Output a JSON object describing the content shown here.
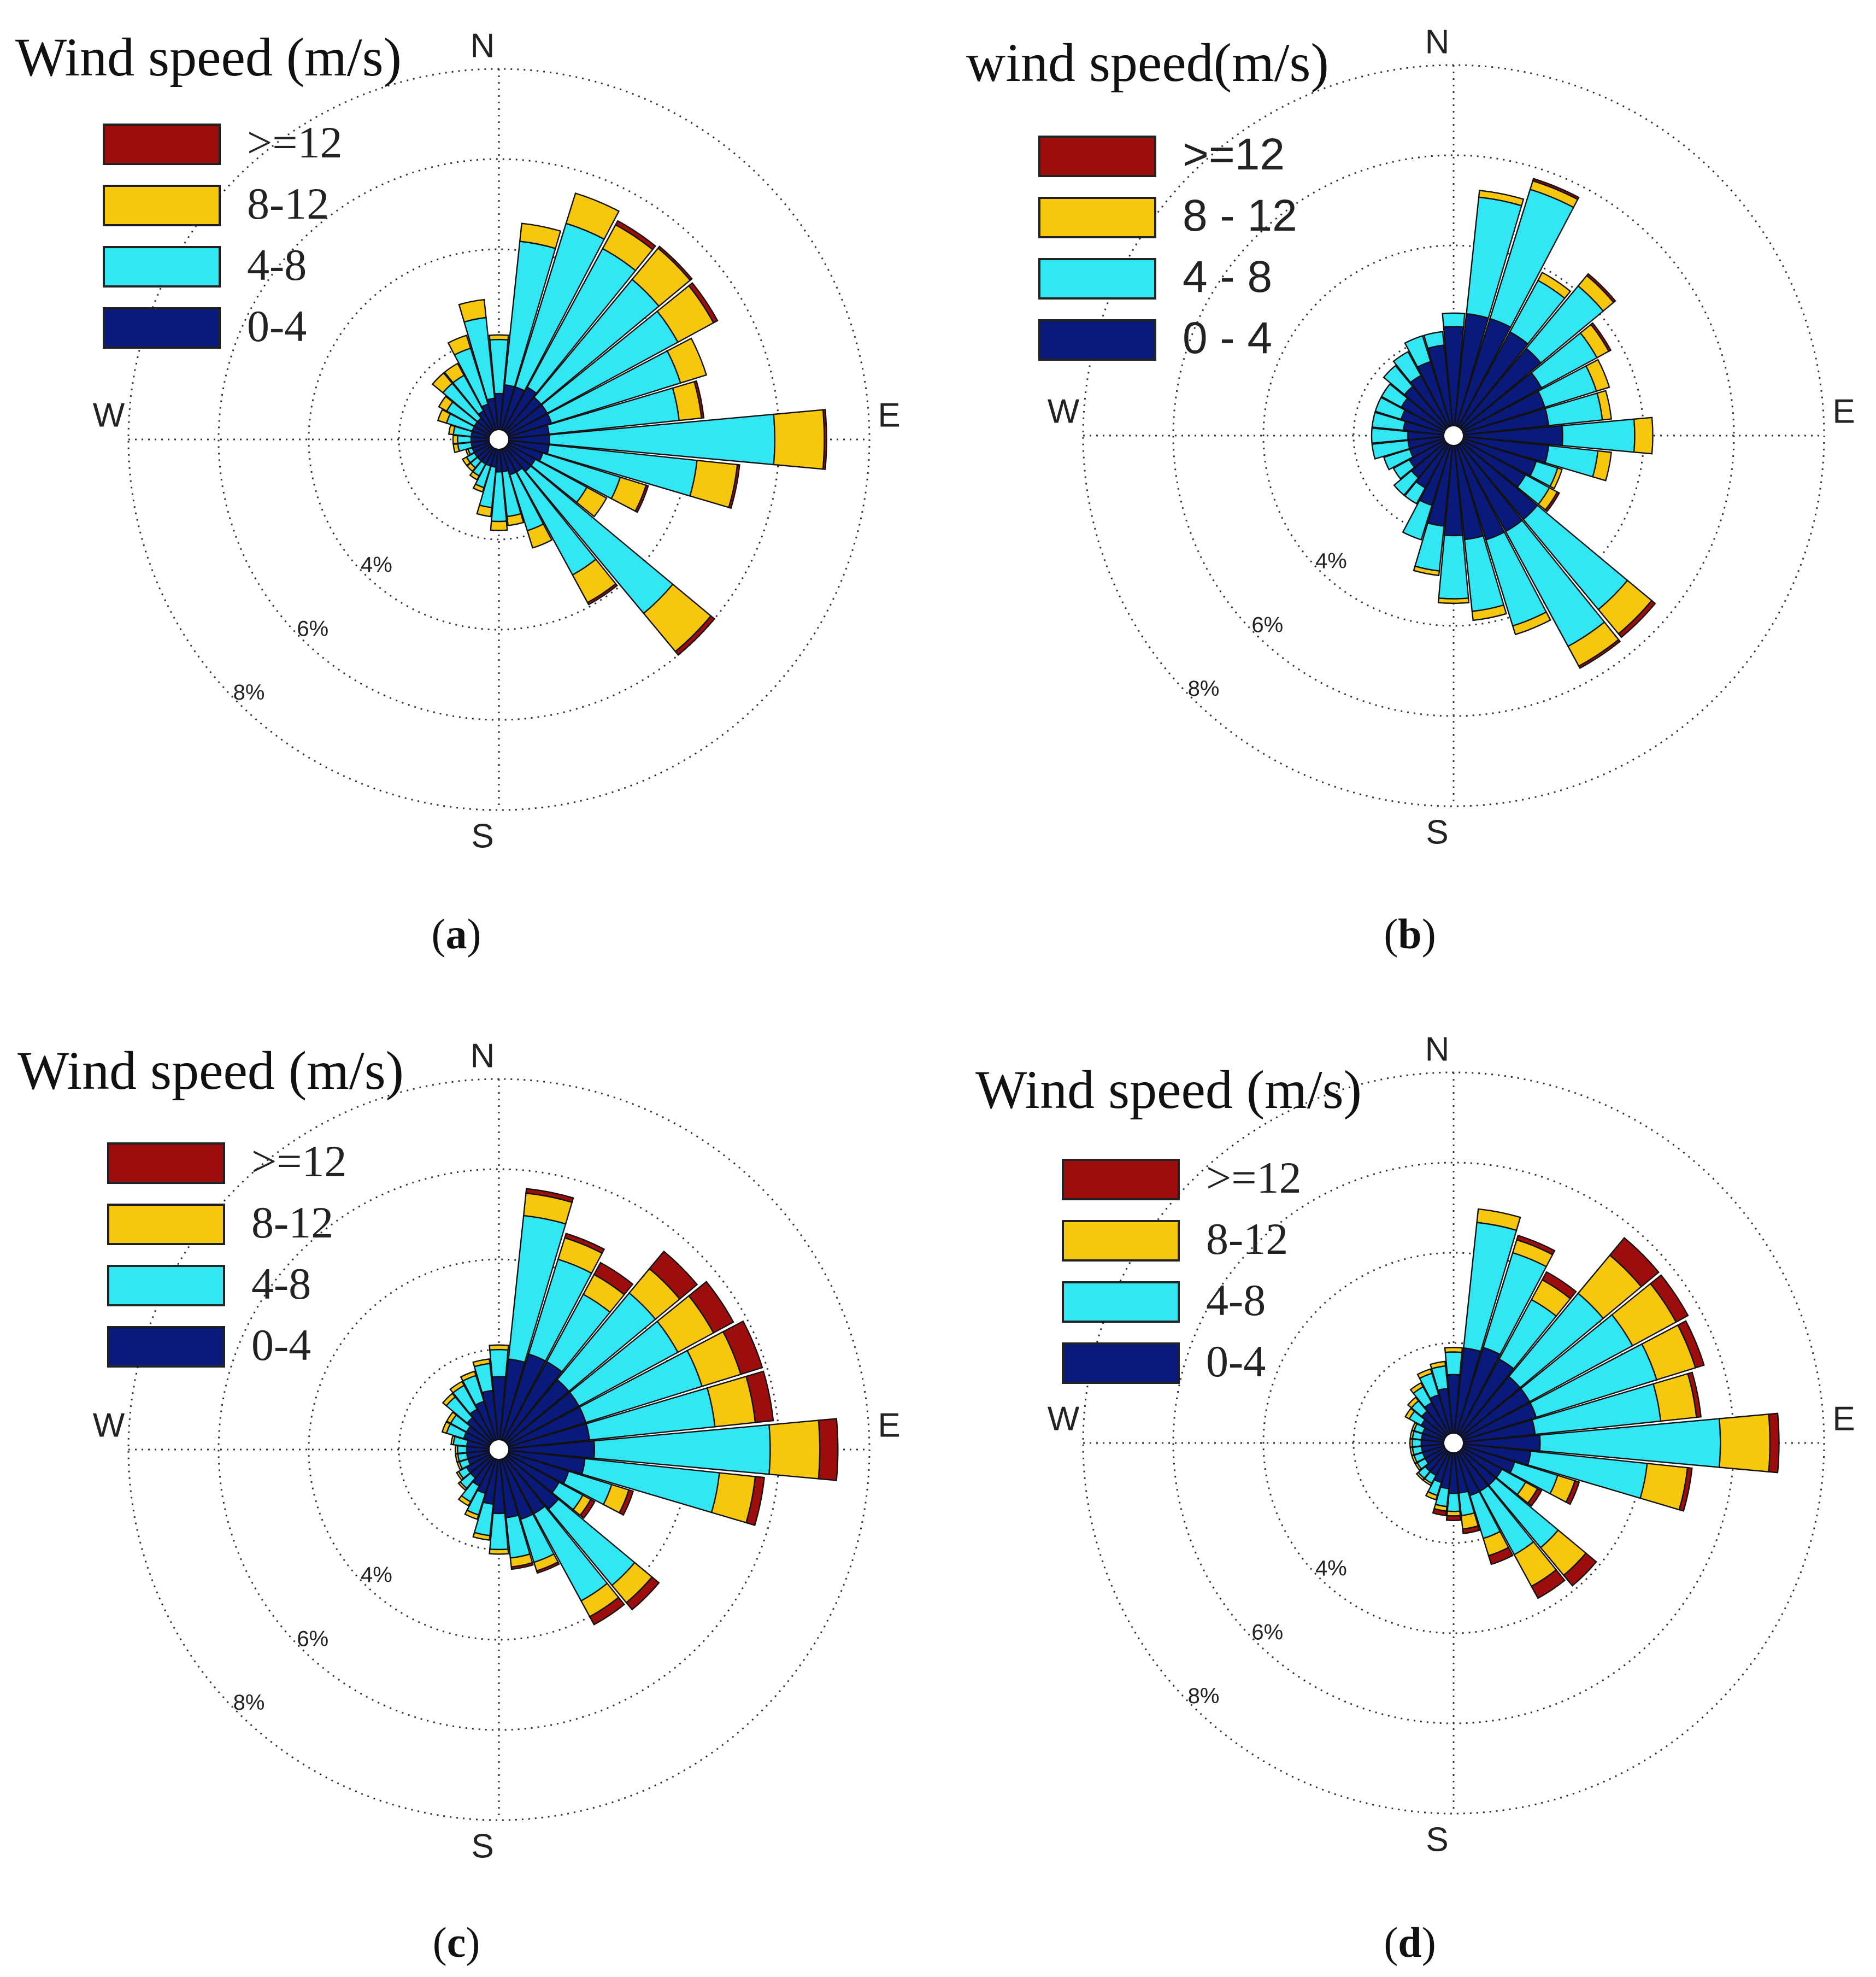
{
  "colors": {
    "bin_0_4": "#0a1a7a",
    "bin_4_8": "#33e6f4",
    "bin_8_12": "#f7c60f",
    "bin_ge_12": "#9c0d0d",
    "grid": "#333333"
  },
  "compass_labels": {
    "n": "N",
    "e": "E",
    "s": "S",
    "w": "W"
  },
  "ring_labels": [
    "4%",
    "6%",
    "8%"
  ],
  "chart_data": [
    {
      "type": "wind-rose",
      "panel": "a",
      "legend_title": "Wind speed (m/s)",
      "legend": [
        ">=12",
        "8-12",
        "4-8",
        "0-4"
      ],
      "radial_max_percent": 8,
      "caption": "(a)",
      "caption_letter": "a",
      "directions_deg": [
        0,
        11.25,
        22.5,
        33.75,
        45,
        56.25,
        67.5,
        78.75,
        90,
        101.25,
        112.5,
        123.75,
        135,
        146.25,
        157.5,
        168.75,
        180,
        191.25,
        202.5,
        213.75,
        225,
        236.25,
        247.5,
        258.75,
        270,
        281.25,
        292.5,
        303.75,
        315,
        326.25,
        337.5,
        348.75
      ],
      "series": [
        {
          "name": "0-4",
          "values": [
            0.8,
            1.0,
            1.0,
            1.1,
            1.0,
            1.0,
            1.0,
            0.9,
            0.9,
            0.9,
            0.8,
            0.7,
            0.7,
            0.6,
            0.6,
            0.5,
            0.5,
            0.4,
            0.4,
            0.4,
            0.4,
            0.4,
            0.4,
            0.4,
            0.4,
            0.4,
            0.4,
            0.4,
            0.4,
            0.5,
            0.6,
            0.7
          ]
        },
        {
          "name": "4-8",
          "values": [
            1.2,
            3.2,
            3.8,
            3.5,
            3.4,
            3.3,
            3.0,
            2.9,
            5.0,
            3.3,
            1.8,
            1.3,
            4.1,
            2.6,
            1.3,
            1.0,
            1.1,
            0.9,
            0.5,
            0.3,
            0.2,
            0.2,
            0.1,
            0.3,
            0.3,
            0.4,
            0.6,
            0.7,
            1.0,
            0.9,
            1.3,
            1.8
          ]
        },
        {
          "name": "8-12",
          "values": [
            0.1,
            0.4,
            0.7,
            0.6,
            0.9,
            0.9,
            0.6,
            0.5,
            1.1,
            0.9,
            0.6,
            0.5,
            1.1,
            0.7,
            0.4,
            0.2,
            0.2,
            0.2,
            0.1,
            0.1,
            0.1,
            0.1,
            0.05,
            0.1,
            0.1,
            0.1,
            0.2,
            0.2,
            0.3,
            0.3,
            0.3,
            0.4
          ]
        },
        {
          "name": ">=12",
          "values": [
            0.0,
            0.0,
            0.0,
            0.1,
            0.05,
            0.1,
            0.0,
            0.05,
            0.05,
            0.05,
            0.05,
            0.0,
            0.1,
            0.05,
            0.0,
            0.0,
            0.0,
            0.0,
            0.0,
            0.0,
            0.0,
            0.0,
            0.0,
            0.0,
            0.0,
            0.0,
            0.0,
            0.0,
            0.0,
            0.0,
            0.0,
            0.0
          ]
        }
      ]
    },
    {
      "type": "wind-rose",
      "panel": "b",
      "legend_title": "wind speed(m/s)",
      "legend": [
        ">=12",
        "8 - 12",
        "4 - 8",
        "0 - 4"
      ],
      "radial_max_percent": 8,
      "caption": "(b)",
      "caption_letter": "b",
      "directions_deg": [
        0,
        11.25,
        22.5,
        33.75,
        45,
        56.25,
        67.5,
        78.75,
        90,
        101.25,
        112.5,
        123.75,
        135,
        146.25,
        157.5,
        168.75,
        180,
        191.25,
        202.5,
        213.75,
        225,
        236.25,
        247.5,
        258.75,
        270,
        281.25,
        292.5,
        303.75,
        315,
        326.25,
        337.5,
        348.75
      ],
      "series": [
        {
          "name": "0 - 4",
          "values": [
            2.2,
            2.5,
            2.5,
            2.4,
            2.3,
            2.0,
            1.9,
            1.9,
            2.2,
            1.9,
            1.7,
            1.6,
            2.2,
            2.2,
            2.2,
            2.1,
            2.0,
            1.8,
            1.4,
            1.1,
            1.0,
            0.9,
            0.8,
            0.8,
            0.8,
            0.9,
            1.0,
            1.1,
            1.2,
            1.3,
            1.5,
            1.8
          ]
        },
        {
          "name": "4 - 8",
          "values": [
            0.3,
            2.6,
            3.0,
            1.3,
            1.8,
            1.4,
            1.2,
            1.2,
            1.6,
            1.1,
            0.5,
            0.6,
            2.6,
            2.9,
            2.0,
            1.6,
            1.4,
            1.0,
            0.8,
            0.4,
            0.5,
            0.4,
            0.6,
            0.8,
            0.8,
            0.7,
            0.6,
            0.5,
            0.6,
            0.6,
            0.6,
            0.3
          ]
        },
        {
          "name": "8 - 12",
          "values": [
            0.0,
            0.15,
            0.2,
            0.2,
            0.3,
            0.3,
            0.3,
            0.2,
            0.4,
            0.3,
            0.1,
            0.2,
            0.7,
            0.5,
            0.2,
            0.2,
            0.1,
            0.1,
            0.0,
            0.0,
            0.0,
            0.0,
            0.0,
            0.0,
            0.0,
            0.0,
            0.0,
            0.0,
            0.0,
            0.0,
            0.0,
            0.0
          ]
        },
        {
          "name": ">=12",
          "values": [
            0.0,
            0.0,
            0.05,
            0.0,
            0.05,
            0.05,
            0.0,
            0.0,
            0.0,
            0.0,
            0.0,
            0.05,
            0.1,
            0.05,
            0.0,
            0.0,
            0.0,
            0.0,
            0.0,
            0.0,
            0.0,
            0.0,
            0.0,
            0.0,
            0.0,
            0.0,
            0.0,
            0.0,
            0.0,
            0.0,
            0.0,
            0.0
          ]
        }
      ]
    },
    {
      "type": "wind-rose",
      "panel": "c",
      "legend_title": "Wind speed (m/s)",
      "legend": [
        ">=12",
        "8-12",
        "4-8",
        "0-4"
      ],
      "radial_max_percent": 8,
      "caption": "(c)",
      "caption_letter": "c",
      "directions_deg": [
        0,
        11.25,
        22.5,
        33.75,
        45,
        56.25,
        67.5,
        78.75,
        90,
        101.25,
        112.5,
        123.75,
        135,
        146.25,
        157.5,
        168.75,
        180,
        191.25,
        202.5,
        213.75,
        225,
        236.25,
        247.5,
        258.75,
        270,
        281.25,
        292.5,
        303.75,
        315,
        326.25,
        337.5,
        348.75
      ],
      "series": [
        {
          "name": "0-4",
          "values": [
            1.4,
            1.8,
            2.0,
            2.0,
            1.8,
            1.8,
            1.8,
            1.8,
            1.9,
            1.7,
            1.4,
            1.3,
            1.5,
            1.4,
            1.4,
            1.3,
            1.2,
            1.0,
            0.8,
            0.7,
            0.6,
            0.6,
            0.5,
            0.5,
            0.5,
            0.5,
            0.6,
            0.6,
            0.7,
            0.8,
            0.9,
            1.1
          ]
        },
        {
          "name": "4-8",
          "values": [
            0.6,
            3.2,
            2.2,
            1.7,
            2.5,
            2.5,
            2.7,
            2.8,
            3.9,
            3.0,
            1.0,
            0.6,
            2.2,
            2.2,
            1.0,
            0.9,
            0.8,
            0.7,
            0.5,
            0.4,
            0.3,
            0.2,
            0.2,
            0.2,
            0.2,
            0.3,
            0.4,
            0.4,
            0.6,
            0.6,
            0.6,
            0.6
          ]
        },
        {
          "name": "8-12",
          "values": [
            0.1,
            0.5,
            0.5,
            0.5,
            0.7,
            0.9,
            0.9,
            0.9,
            1.1,
            0.8,
            0.4,
            0.2,
            0.5,
            0.4,
            0.2,
            0.2,
            0.1,
            0.1,
            0.1,
            0.1,
            0.05,
            0.05,
            0.05,
            0.05,
            0.05,
            0.05,
            0.1,
            0.1,
            0.1,
            0.1,
            0.1,
            0.1
          ]
        },
        {
          "name": ">=12",
          "values": [
            0.0,
            0.1,
            0.1,
            0.3,
            0.5,
            0.5,
            0.5,
            0.4,
            0.4,
            0.2,
            0.1,
            0.1,
            0.2,
            0.2,
            0.05,
            0.05,
            0.0,
            0.0,
            0.0,
            0.0,
            0.0,
            0.0,
            0.0,
            0.0,
            0.0,
            0.0,
            0.0,
            0.0,
            0.0,
            0.0,
            0.0,
            0.0
          ]
        }
      ]
    },
    {
      "type": "wind-rose",
      "panel": "d",
      "legend_title": "Wind speed (m/s)",
      "legend": [
        ">=12",
        "8-12",
        "4-8",
        "0-4"
      ],
      "radial_max_percent": 8,
      "caption": "(d)",
      "caption_letter": "d",
      "directions_deg": [
        0,
        11.25,
        22.5,
        33.75,
        45,
        56.25,
        67.5,
        78.75,
        90,
        101.25,
        112.5,
        123.75,
        135,
        146.25,
        157.5,
        168.75,
        180,
        191.25,
        202.5,
        213.75,
        225,
        236.25,
        247.5,
        258.75,
        270,
        281.25,
        292.5,
        303.75,
        315,
        326.25,
        337.5,
        348.75
      ],
      "series": [
        {
          "name": "0-4",
          "values": [
            1.3,
            1.9,
            2.0,
            1.9,
            1.7,
            1.7,
            1.7,
            1.6,
            1.7,
            1.5,
            1.2,
            1.0,
            1.0,
            1.0,
            1.0,
            0.9,
            0.9,
            0.8,
            0.7,
            0.6,
            0.6,
            0.5,
            0.5,
            0.5,
            0.5,
            0.5,
            0.5,
            0.6,
            0.7,
            0.8,
            0.9,
            1.0
          ]
        },
        {
          "name": "4-8",
          "values": [
            0.5,
            2.8,
            2.2,
            1.5,
            2.4,
            2.6,
            2.8,
            2.8,
            4.0,
            2.6,
            1.0,
            0.6,
            1.8,
            1.6,
            1.0,
            0.5,
            0.4,
            0.4,
            0.3,
            0.2,
            0.2,
            0.2,
            0.2,
            0.2,
            0.2,
            0.2,
            0.2,
            0.3,
            0.3,
            0.4,
            0.5,
            0.5
          ]
        },
        {
          "name": "8-12",
          "values": [
            0.1,
            0.3,
            0.3,
            0.5,
            1.1,
            1.1,
            0.9,
            0.8,
            1.1,
            0.9,
            0.4,
            0.3,
            0.8,
            0.8,
            0.4,
            0.3,
            0.1,
            0.1,
            0.1,
            0.05,
            0.05,
            0.05,
            0.05,
            0.05,
            0.05,
            0.05,
            0.05,
            0.1,
            0.1,
            0.1,
            0.1,
            0.1
          ]
        },
        {
          "name": ">=12",
          "values": [
            0.0,
            0.0,
            0.1,
            0.2,
            0.5,
            0.3,
            0.2,
            0.1,
            0.2,
            0.1,
            0.1,
            0.1,
            0.3,
            0.3,
            0.2,
            0.1,
            0.1,
            0.1,
            0.0,
            0.0,
            0.0,
            0.0,
            0.0,
            0.0,
            0.0,
            0.0,
            0.0,
            0.0,
            0.0,
            0.0,
            0.0,
            0.0
          ]
        }
      ]
    }
  ]
}
